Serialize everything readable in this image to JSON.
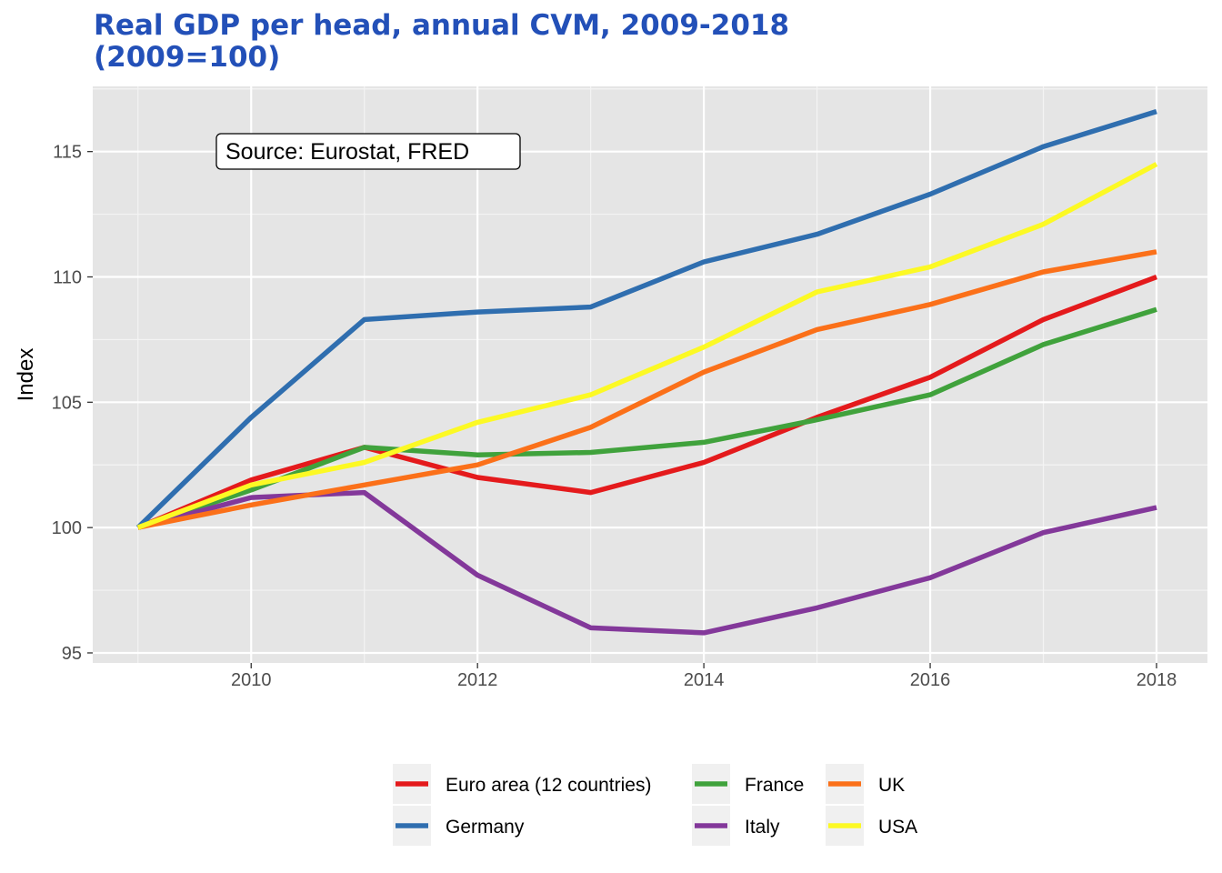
{
  "chart_data": {
    "type": "line",
    "title": "Real GDP per head, annual CVM, 2009-2018",
    "subtitle": "(2009=100)",
    "xlabel": "",
    "ylabel": "Index",
    "x": [
      2009,
      2010,
      2011,
      2012,
      2013,
      2014,
      2015,
      2016,
      2017,
      2018
    ],
    "xlim": [
      2008.6,
      2018.45
    ],
    "ylim": [
      94.6,
      117.6
    ],
    "xticks": [
      2010,
      2012,
      2014,
      2016,
      2018
    ],
    "yticks": [
      95,
      100,
      105,
      110,
      115
    ],
    "grid": true,
    "legend_position": "bottom",
    "annotation": "Source: Eurostat, FRED",
    "series": [
      {
        "name": "Euro area (12 countries)",
        "color": "#e41a1c",
        "values": [
          100.0,
          101.9,
          103.2,
          102.0,
          101.4,
          102.6,
          104.4,
          106.0,
          108.3,
          110.0
        ]
      },
      {
        "name": "Germany",
        "color": "#2f6eaf",
        "values": [
          100.0,
          104.4,
          108.3,
          108.6,
          108.8,
          110.6,
          111.7,
          113.3,
          115.2,
          116.6
        ]
      },
      {
        "name": "France",
        "color": "#40a23c",
        "values": [
          100.0,
          101.5,
          103.2,
          102.9,
          103.0,
          103.4,
          104.3,
          105.3,
          107.3,
          108.7
        ]
      },
      {
        "name": "Italy",
        "color": "#83389a",
        "values": [
          100.0,
          101.2,
          101.4,
          98.1,
          96.0,
          95.8,
          96.8,
          98.0,
          99.8,
          100.8
        ]
      },
      {
        "name": "UK",
        "color": "#fb7019",
        "values": [
          100.0,
          100.9,
          101.7,
          102.5,
          104.0,
          106.2,
          107.9,
          108.9,
          110.2,
          111.0
        ]
      },
      {
        "name": "USA",
        "color": "#fcf924",
        "values": [
          100.0,
          101.7,
          102.6,
          104.2,
          105.3,
          107.2,
          109.4,
          110.4,
          112.1,
          114.5
        ]
      }
    ]
  }
}
